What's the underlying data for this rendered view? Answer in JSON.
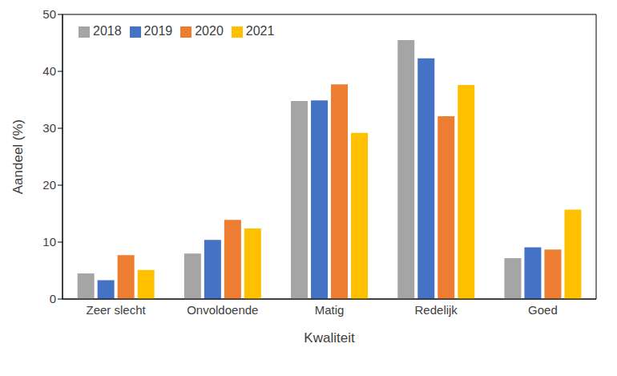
{
  "chart_data": {
    "type": "bar",
    "x_label": "Kwaliteit",
    "y_label": "Aandeel (%)",
    "categories": [
      "Zeer slecht",
      "Onvoldoende",
      "Matig",
      "Redelijk",
      "Goed"
    ],
    "series": [
      {
        "name": "2018",
        "color": "#a5a5a5",
        "values": [
          4.5,
          8.0,
          34.8,
          45.5,
          7.2
        ]
      },
      {
        "name": "2019",
        "color": "#4472c4",
        "values": [
          3.3,
          10.4,
          34.9,
          42.3,
          9.1
        ]
      },
      {
        "name": "2020",
        "color": "#ed7d31",
        "values": [
          7.7,
          13.9,
          37.7,
          32.1,
          8.7
        ]
      },
      {
        "name": "2021",
        "color": "#ffc000",
        "values": [
          5.1,
          12.4,
          29.2,
          37.6,
          15.7
        ]
      }
    ],
    "ylim": [
      0,
      50
    ],
    "yticks": [
      0,
      10,
      20,
      30,
      40,
      50
    ],
    "grid": false,
    "legend": "upper left"
  }
}
